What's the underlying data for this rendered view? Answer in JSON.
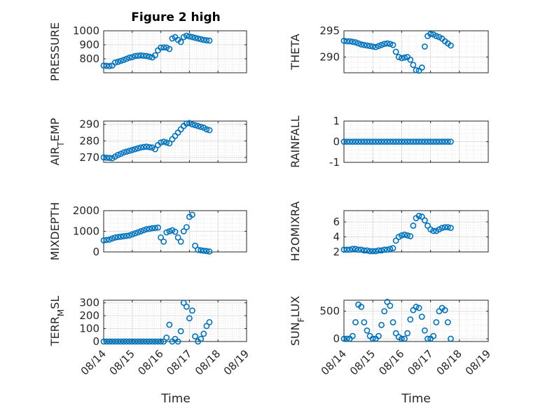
{
  "figure_title": "Figure 2 high",
  "x_axis_label": "Time",
  "x_tick_labels": [
    "08/14",
    "08/15",
    "08/16",
    "08/17",
    "08/18",
    "08/19"
  ],
  "colors": {
    "marker": "#0072BD",
    "axes": "#262626",
    "grid": "#dedede",
    "background": "#ffffff"
  },
  "chart_data": [
    {
      "type": "scatter",
      "ylabel": "PRESSURE",
      "ylabel_sub": "",
      "xlim": [
        0,
        5
      ],
      "ylim": [
        700,
        1000
      ],
      "yticks": [
        800,
        900,
        1000
      ],
      "x": [
        0.0,
        0.1,
        0.2,
        0.3,
        0.4,
        0.5,
        0.6,
        0.7,
        0.8,
        0.9,
        1.0,
        1.1,
        1.2,
        1.3,
        1.4,
        1.5,
        1.6,
        1.7,
        1.8,
        1.9,
        2.0,
        2.1,
        2.2,
        2.3,
        2.4,
        2.5,
        2.6,
        2.7,
        2.8,
        2.9,
        3.0,
        3.1,
        3.2,
        3.3,
        3.4,
        3.5,
        3.6,
        3.7
      ],
      "y": [
        752,
        750,
        748,
        752,
        773,
        778,
        785,
        792,
        800,
        808,
        812,
        820,
        822,
        824,
        822,
        820,
        815,
        810,
        825,
        860,
        880,
        882,
        880,
        870,
        945,
        955,
        935,
        920,
        955,
        965,
        960,
        955,
        950,
        945,
        940,
        935,
        932,
        930
      ],
      "grid": true
    },
    {
      "type": "scatter",
      "ylabel": "THETA",
      "ylabel_sub": "",
      "xlim": [
        0,
        5
      ],
      "ylim": [
        287,
        295
      ],
      "yticks": [
        290,
        295
      ],
      "x": [
        0.0,
        0.1,
        0.2,
        0.3,
        0.4,
        0.5,
        0.6,
        0.7,
        0.8,
        0.9,
        1.0,
        1.1,
        1.2,
        1.3,
        1.4,
        1.5,
        1.6,
        1.7,
        1.8,
        1.9,
        2.0,
        2.1,
        2.2,
        2.3,
        2.4,
        2.5,
        2.6,
        2.7,
        2.8,
        2.9,
        3.0,
        3.1,
        3.2,
        3.3,
        3.4,
        3.5,
        3.6,
        3.7
      ],
      "y": [
        293.1,
        293.0,
        293.0,
        292.9,
        292.8,
        292.6,
        292.4,
        292.3,
        292.2,
        292.1,
        292.0,
        291.9,
        292.1,
        292.3,
        292.5,
        292.6,
        292.5,
        292.3,
        291.0,
        290.0,
        289.8,
        289.9,
        290.0,
        289.5,
        288.5,
        287.5,
        287.4,
        288.0,
        292.0,
        294.0,
        294.4,
        294.3,
        294.0,
        293.8,
        293.5,
        293.0,
        292.6,
        292.2
      ],
      "grid": true
    },
    {
      "type": "scatter",
      "ylabel": "AIR",
      "ylabel_sub": "T",
      "ylabel_tail": "EMP",
      "xlim": [
        0,
        5
      ],
      "ylim": [
        267,
        292
      ],
      "yticks": [
        270,
        280,
        290
      ],
      "x": [
        0.0,
        0.1,
        0.2,
        0.3,
        0.4,
        0.5,
        0.6,
        0.7,
        0.8,
        0.9,
        1.0,
        1.1,
        1.2,
        1.3,
        1.4,
        1.5,
        1.6,
        1.7,
        1.8,
        1.9,
        2.0,
        2.1,
        2.2,
        2.3,
        2.4,
        2.5,
        2.6,
        2.7,
        2.8,
        2.9,
        3.0,
        3.1,
        3.2,
        3.3,
        3.4,
        3.5,
        3.6,
        3.7
      ],
      "y": [
        270.0,
        269.8,
        269.7,
        269.5,
        270.5,
        271.5,
        272.2,
        273.0,
        273.5,
        274.0,
        274.5,
        275.0,
        275.5,
        276.0,
        276.3,
        276.5,
        276.2,
        276.0,
        275.0,
        277.5,
        279.0,
        279.5,
        279.0,
        278.5,
        281.0,
        283.0,
        285.0,
        287.0,
        289.0,
        290.5,
        290.8,
        290.0,
        289.5,
        289.0,
        288.5,
        288.0,
        287.0,
        286.5
      ],
      "grid": true
    },
    {
      "type": "scatter",
      "ylabel": "RAINFALL",
      "ylabel_sub": "",
      "xlim": [
        0,
        5
      ],
      "ylim": [
        -1,
        1
      ],
      "yticks": [
        -1,
        0,
        1
      ],
      "x": [
        0.0,
        0.1,
        0.2,
        0.3,
        0.4,
        0.5,
        0.6,
        0.7,
        0.8,
        0.9,
        1.0,
        1.1,
        1.2,
        1.3,
        1.4,
        1.5,
        1.6,
        1.7,
        1.8,
        1.9,
        2.0,
        2.1,
        2.2,
        2.3,
        2.4,
        2.5,
        2.6,
        2.7,
        2.8,
        2.9,
        3.0,
        3.1,
        3.2,
        3.3,
        3.4,
        3.5,
        3.6,
        3.7
      ],
      "y": [
        0,
        0,
        0,
        0,
        0,
        0,
        0,
        0,
        0,
        0,
        0,
        0,
        0,
        0,
        0,
        0,
        0,
        0,
        0,
        0,
        0,
        0,
        0,
        0,
        0,
        0,
        0,
        0,
        0,
        0,
        0,
        0,
        0,
        0,
        0,
        0,
        0,
        0
      ],
      "grid": true
    },
    {
      "type": "scatter",
      "ylabel": "MIXDEPTH",
      "ylabel_sub": "",
      "xlim": [
        0,
        5
      ],
      "ylim": [
        0,
        2000
      ],
      "yticks": [
        0,
        1000,
        2000
      ],
      "x": [
        0.0,
        0.1,
        0.2,
        0.3,
        0.4,
        0.5,
        0.6,
        0.7,
        0.8,
        0.9,
        1.0,
        1.1,
        1.2,
        1.3,
        1.4,
        1.5,
        1.6,
        1.7,
        1.8,
        1.9,
        2.0,
        2.1,
        2.2,
        2.3,
        2.4,
        2.5,
        2.6,
        2.7,
        2.8,
        2.9,
        3.0,
        3.1,
        3.2,
        3.3,
        3.4,
        3.5,
        3.6,
        3.7
      ],
      "y": [
        560,
        580,
        600,
        650,
        700,
        720,
        740,
        760,
        780,
        800,
        850,
        900,
        950,
        1000,
        1050,
        1100,
        1120,
        1150,
        1160,
        1180,
        700,
        500,
        950,
        1000,
        1050,
        980,
        700,
        500,
        1000,
        1200,
        1700,
        1800,
        300,
        100,
        80,
        60,
        40,
        20
      ],
      "grid": true
    },
    {
      "type": "scatter",
      "ylabel": "H2OMIXRA",
      "ylabel_sub": "",
      "xlim": [
        0,
        5
      ],
      "ylim": [
        2,
        7.5
      ],
      "yticks": [
        2,
        4,
        6
      ],
      "x": [
        0.0,
        0.1,
        0.2,
        0.3,
        0.4,
        0.5,
        0.6,
        0.7,
        0.8,
        0.9,
        1.0,
        1.1,
        1.2,
        1.3,
        1.4,
        1.5,
        1.6,
        1.7,
        1.8,
        1.9,
        2.0,
        2.1,
        2.2,
        2.3,
        2.4,
        2.5,
        2.6,
        2.7,
        2.8,
        2.9,
        3.0,
        3.1,
        3.2,
        3.3,
        3.4,
        3.5,
        3.6,
        3.7
      ],
      "y": [
        2.3,
        2.3,
        2.3,
        2.4,
        2.4,
        2.3,
        2.3,
        2.2,
        2.2,
        2.1,
        2.1,
        2.1,
        2.2,
        2.2,
        2.3,
        2.3,
        2.4,
        2.5,
        3.5,
        4.0,
        4.2,
        4.3,
        4.2,
        4.1,
        5.5,
        6.5,
        6.8,
        6.7,
        6.2,
        5.5,
        5.0,
        4.8,
        4.8,
        5.0,
        5.2,
        5.3,
        5.3,
        5.2
      ],
      "grid": true
    },
    {
      "type": "scatter",
      "ylabel": "TERR",
      "ylabel_sub": "M",
      "ylabel_tail": "SL",
      "xlim": [
        0,
        5
      ],
      "ylim": [
        0,
        320
      ],
      "yticks": [
        0,
        100,
        200,
        300
      ],
      "x": [
        0.0,
        0.1,
        0.2,
        0.3,
        0.4,
        0.5,
        0.6,
        0.7,
        0.8,
        0.9,
        1.0,
        1.1,
        1.2,
        1.3,
        1.4,
        1.5,
        1.6,
        1.7,
        1.8,
        1.9,
        2.0,
        2.1,
        2.2,
        2.3,
        2.4,
        2.5,
        2.6,
        2.7,
        2.8,
        2.9,
        3.0,
        3.1,
        3.2,
        3.3,
        3.4,
        3.5,
        3.6,
        3.7
      ],
      "y": [
        0,
        0,
        0,
        0,
        0,
        0,
        0,
        0,
        0,
        0,
        0,
        0,
        0,
        0,
        0,
        0,
        0,
        0,
        0,
        0,
        0,
        0,
        30,
        130,
        0,
        20,
        0,
        80,
        300,
        270,
        180,
        240,
        40,
        0,
        20,
        60,
        120,
        150
      ],
      "grid": true
    },
    {
      "type": "scatter",
      "ylabel": "SUN",
      "ylabel_sub": "F",
      "ylabel_tail": "LUX",
      "xlim": [
        0,
        5
      ],
      "ylim": [
        -50,
        700
      ],
      "yticks": [
        0,
        500
      ],
      "x": [
        0.0,
        0.1,
        0.2,
        0.3,
        0.4,
        0.5,
        0.6,
        0.7,
        0.8,
        0.9,
        1.0,
        1.1,
        1.2,
        1.3,
        1.4,
        1.5,
        1.6,
        1.7,
        1.8,
        1.9,
        2.0,
        2.1,
        2.2,
        2.3,
        2.4,
        2.5,
        2.6,
        2.7,
        2.8,
        2.9,
        3.0,
        3.1,
        3.2,
        3.3,
        3.4,
        3.5,
        3.6,
        3.7
      ],
      "y": [
        0,
        0,
        0,
        50,
        300,
        620,
        580,
        300,
        150,
        50,
        0,
        0,
        50,
        250,
        500,
        670,
        600,
        300,
        100,
        30,
        0,
        0,
        100,
        350,
        520,
        580,
        560,
        400,
        150,
        0,
        0,
        50,
        300,
        500,
        560,
        520,
        300,
        0
      ],
      "grid": true
    }
  ]
}
